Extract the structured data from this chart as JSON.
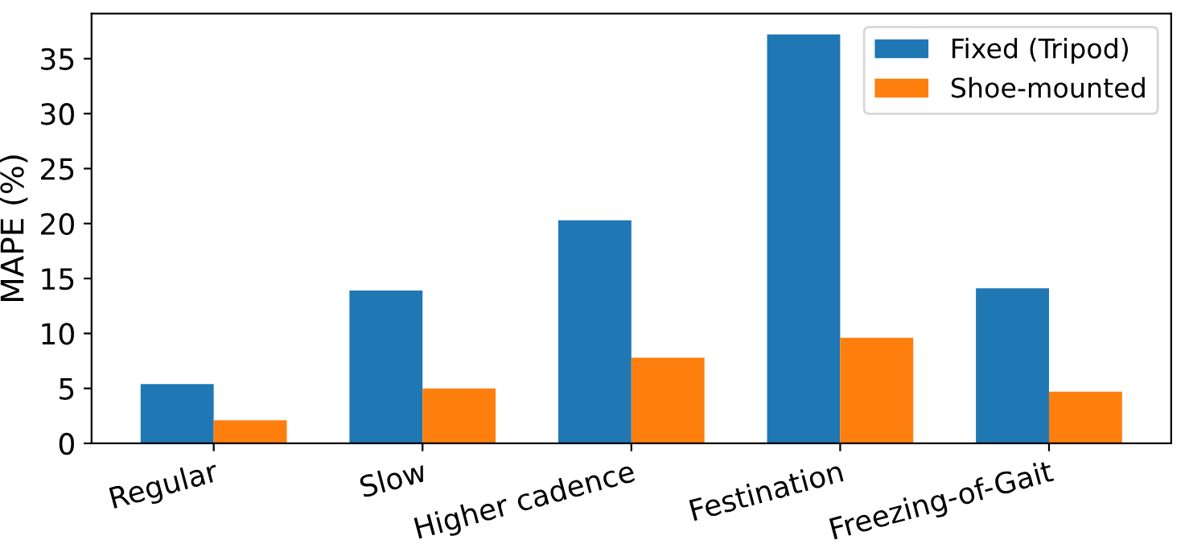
{
  "chart_data": {
    "type": "bar",
    "ylabel": "MAPE (%)",
    "categories": [
      "Regular",
      "Slow",
      "Higher cadence",
      "Festination",
      "Freezing-of-Gait"
    ],
    "series": [
      {
        "name": "Fixed (Tripod)",
        "color": "#1f77b4",
        "values": [
          5.4,
          13.9,
          20.3,
          37.2,
          14.1
        ]
      },
      {
        "name": "Shoe-mounted",
        "color": "#ff7f0e",
        "values": [
          2.1,
          5.0,
          7.8,
          9.6,
          4.7
        ]
      }
    ],
    "ylim": [
      0,
      39.1
    ],
    "yticks": [
      0,
      5,
      10,
      15,
      20,
      25,
      30,
      35
    ],
    "grid": false,
    "legend": "top right"
  }
}
